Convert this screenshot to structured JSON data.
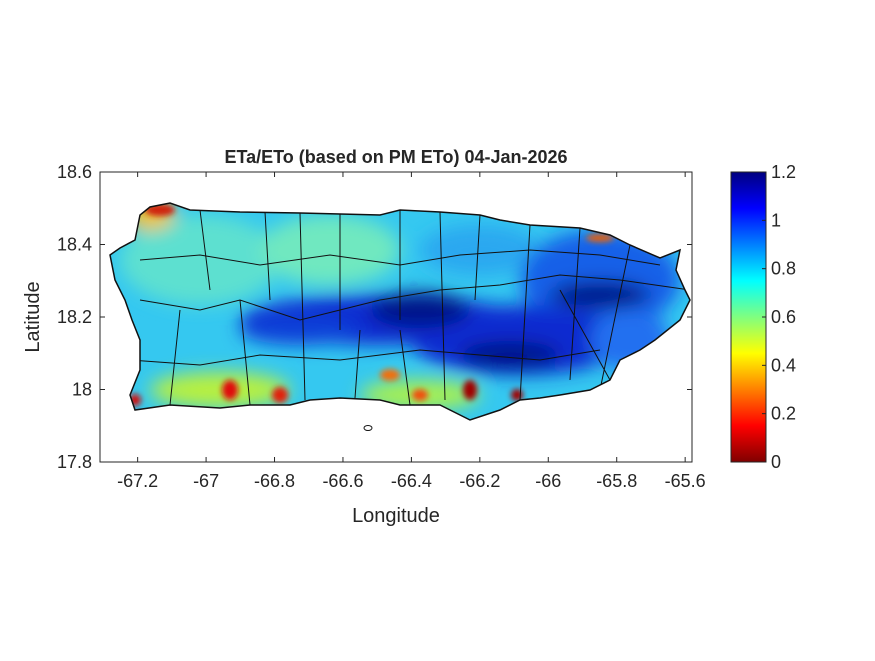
{
  "chart_data": {
    "type": "heatmap",
    "title": "ETa/ETo (based on PM ETo) 04-Jan-2026",
    "xlabel": "Longitude",
    "ylabel": "Latitude",
    "xlim": [
      -67.31,
      -65.58
    ],
    "ylim": [
      17.8,
      18.6
    ],
    "xticks": [
      -67.2,
      -67,
      -66.8,
      -66.6,
      -66.4,
      -66.2,
      -66,
      -65.8,
      -65.6
    ],
    "xtick_labels": [
      "-67.2",
      "-67",
      "-66.8",
      "-66.6",
      "-66.4",
      "-66.2",
      "-66",
      "-65.8",
      "-65.6"
    ],
    "yticks": [
      17.8,
      18,
      18.2,
      18.4,
      18.6
    ],
    "ytick_labels": [
      "17.8",
      "18",
      "18.2",
      "18.4",
      "18.6"
    ],
    "colorbar": {
      "colormap": "jet",
      "range": [
        0,
        1.2
      ],
      "ticks": [
        0,
        0.2,
        0.4,
        0.6,
        0.8,
        1,
        1.2
      ],
      "tick_labels": [
        "0",
        "0.2",
        "0.4",
        "0.6",
        "0.8",
        "1",
        "1.2"
      ],
      "location": "right"
    },
    "grid": false,
    "description_regions": {
      "central_mountain_band": 1.1,
      "east": 1.0,
      "west_and_north": 0.75,
      "south_coast_hotspots": 0.2
    }
  }
}
